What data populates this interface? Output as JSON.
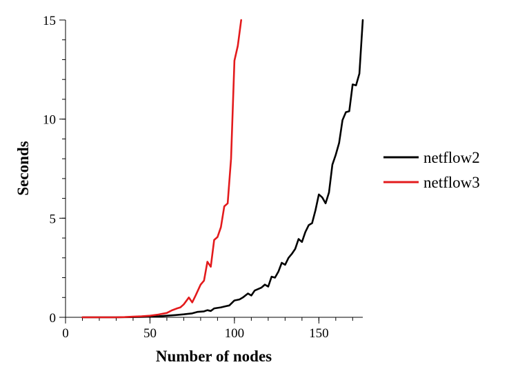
{
  "chart_data": {
    "type": "line",
    "title": "",
    "xlabel": "Number of nodes",
    "ylabel": "Seconds",
    "xlim": [
      0,
      176
    ],
    "ylim": [
      0,
      15
    ],
    "x_ticks": [
      0,
      50,
      100,
      150
    ],
    "x_tick_labels": [
      "0",
      "50",
      "100",
      "150"
    ],
    "y_ticks": [
      0,
      5,
      10,
      15
    ],
    "y_tick_labels": [
      "0",
      "5",
      "10",
      "15"
    ],
    "grid": false,
    "legend_position": "right",
    "series": [
      {
        "name": "netflow2",
        "color": "#000000",
        "points": [
          [
            10,
            0
          ],
          [
            20,
            0
          ],
          [
            30,
            0
          ],
          [
            40,
            0.01
          ],
          [
            45,
            0.02
          ],
          [
            50,
            0.03
          ],
          [
            55,
            0.05
          ],
          [
            60,
            0.08
          ],
          [
            65,
            0.11
          ],
          [
            70,
            0.15
          ],
          [
            75,
            0.2
          ],
          [
            78,
            0.27
          ],
          [
            82,
            0.3
          ],
          [
            84,
            0.36
          ],
          [
            86,
            0.32
          ],
          [
            88,
            0.45
          ],
          [
            92,
            0.5
          ],
          [
            95,
            0.56
          ],
          [
            97,
            0.6
          ],
          [
            100,
            0.85
          ],
          [
            103,
            0.9
          ],
          [
            105,
            1.0
          ],
          [
            108,
            1.2
          ],
          [
            110,
            1.1
          ],
          [
            112,
            1.35
          ],
          [
            116,
            1.5
          ],
          [
            118,
            1.65
          ],
          [
            120,
            1.55
          ],
          [
            122,
            2.05
          ],
          [
            124,
            2.0
          ],
          [
            126,
            2.3
          ],
          [
            128,
            2.75
          ],
          [
            130,
            2.65
          ],
          [
            132,
            3.0
          ],
          [
            134,
            3.2
          ],
          [
            136,
            3.45
          ],
          [
            138,
            3.95
          ],
          [
            140,
            3.8
          ],
          [
            142,
            4.3
          ],
          [
            144,
            4.65
          ],
          [
            146,
            4.75
          ],
          [
            148,
            5.4
          ],
          [
            150,
            6.2
          ],
          [
            152,
            6.05
          ],
          [
            154,
            5.75
          ],
          [
            156,
            6.3
          ],
          [
            158,
            7.7
          ],
          [
            160,
            8.2
          ],
          [
            162,
            8.8
          ],
          [
            164,
            9.95
          ],
          [
            166,
            10.35
          ],
          [
            168,
            10.4
          ],
          [
            170,
            11.75
          ],
          [
            172,
            11.7
          ],
          [
            174,
            12.3
          ],
          [
            176,
            15.0
          ]
        ]
      },
      {
        "name": "netflow3",
        "color": "#e31a1c",
        "points": [
          [
            10,
            0
          ],
          [
            20,
            0
          ],
          [
            30,
            0
          ],
          [
            35,
            0.01
          ],
          [
            40,
            0.03
          ],
          [
            45,
            0.05
          ],
          [
            50,
            0.08
          ],
          [
            55,
            0.14
          ],
          [
            60,
            0.22
          ],
          [
            63,
            0.35
          ],
          [
            66,
            0.45
          ],
          [
            68,
            0.5
          ],
          [
            70,
            0.65
          ],
          [
            73,
            1.0
          ],
          [
            75,
            0.75
          ],
          [
            77,
            1.1
          ],
          [
            80,
            1.65
          ],
          [
            82,
            1.85
          ],
          [
            84,
            2.8
          ],
          [
            86,
            2.55
          ],
          [
            88,
            3.9
          ],
          [
            90,
            4.05
          ],
          [
            92,
            4.55
          ],
          [
            94,
            5.6
          ],
          [
            96,
            5.75
          ],
          [
            98,
            8.0
          ],
          [
            100,
            12.95
          ],
          [
            102,
            13.7
          ],
          [
            104,
            15.0
          ]
        ]
      }
    ]
  }
}
